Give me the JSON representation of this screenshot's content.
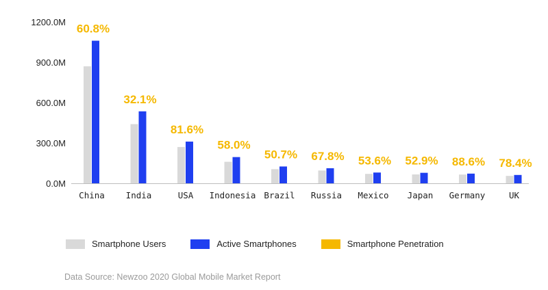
{
  "chart_data": {
    "type": "bar",
    "categories": [
      "China",
      "India",
      "USA",
      "Indonesia",
      "Brazil",
      "Russia",
      "Mexico",
      "Japan",
      "Germany",
      "UK"
    ],
    "series": [
      {
        "name": "Smartphone Users",
        "values": [
          870,
          440,
          270,
          160,
          105,
          95,
          70,
          66,
          65,
          55
        ]
      },
      {
        "name": "Active Smartphones",
        "values": [
          1060,
          535,
          310,
          195,
          125,
          112,
          80,
          78,
          72,
          62
        ]
      }
    ],
    "penetration_series_name": "Smartphone Penetration",
    "penetration_labels": [
      "60.8%",
      "32.1%",
      "81.6%",
      "58.0%",
      "50.7%",
      "67.8%",
      "53.6%",
      "52.9%",
      "88.6%",
      "78.4%"
    ],
    "y_ticks": [
      "0.0M",
      "300.0M",
      "600.0M",
      "900.0M",
      "1200.0M"
    ],
    "y_tick_values": [
      0,
      300,
      600,
      900,
      1200
    ],
    "ylim": [
      0,
      1200
    ],
    "grid": false,
    "legend_position": "bottom-left",
    "colors": {
      "users": "#d9d9d9",
      "active": "#1f3ff0",
      "penetration": "#f5b800"
    },
    "source": "Data Source: Newzoo 2020 Global Mobile Market Report"
  }
}
